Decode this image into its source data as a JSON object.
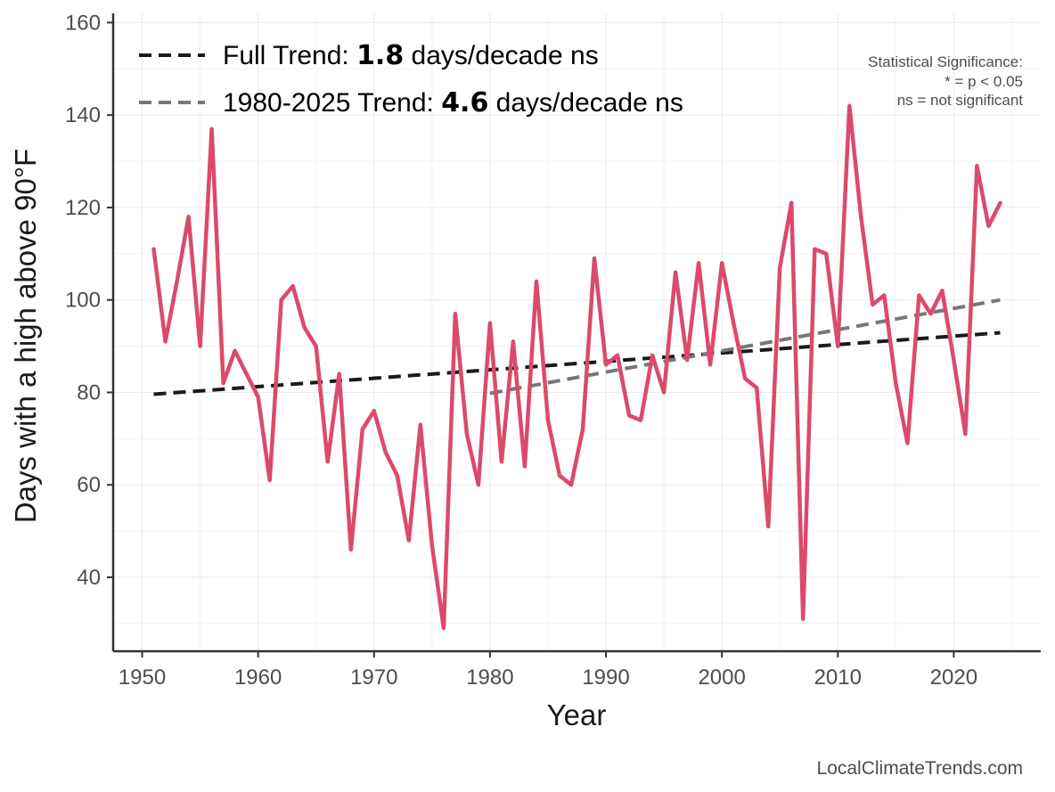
{
  "chart_data": {
    "type": "line",
    "xlabel": "Year",
    "ylabel": "Days with a high above 90°F",
    "xlim": [
      1947.5,
      2027.5
    ],
    "ylim": [
      24,
      162
    ],
    "xticks": [
      1950,
      1960,
      1970,
      1980,
      1990,
      2000,
      2010,
      2020
    ],
    "yticks": [
      40,
      60,
      80,
      100,
      120,
      140,
      160
    ],
    "grid": true,
    "series": [
      {
        "name": "Annual days above 90°F",
        "color": "#dc4a6b",
        "x": [
          1951,
          1952,
          1953,
          1954,
          1955,
          1956,
          1957,
          1958,
          1959,
          1960,
          1961,
          1962,
          1963,
          1964,
          1965,
          1966,
          1967,
          1968,
          1969,
          1970,
          1971,
          1972,
          1973,
          1974,
          1975,
          1976,
          1977,
          1978,
          1979,
          1980,
          1981,
          1982,
          1983,
          1984,
          1985,
          1986,
          1987,
          1988,
          1989,
          1990,
          1991,
          1992,
          1993,
          1994,
          1995,
          1996,
          1997,
          1998,
          1999,
          2000,
          2001,
          2002,
          2003,
          2004,
          2005,
          2006,
          2007,
          2008,
          2009,
          2010,
          2011,
          2012,
          2013,
          2014,
          2015,
          2016,
          2017,
          2018,
          2019,
          2020,
          2021,
          2022,
          2023,
          2024
        ],
        "values": [
          111,
          91,
          104,
          118,
          90,
          137,
          82,
          89,
          84,
          79,
          61,
          100,
          103,
          94,
          90,
          65,
          84,
          46,
          72,
          76,
          67,
          62,
          48,
          73,
          47,
          29,
          97,
          71,
          60,
          95,
          65,
          91,
          64,
          104,
          74,
          62,
          60,
          72,
          109,
          86,
          88,
          75,
          74,
          88,
          80,
          106,
          87,
          108,
          86,
          108,
          95,
          83,
          81,
          51,
          107,
          121,
          31,
          111,
          110,
          90,
          142,
          118,
          99,
          101,
          82,
          69,
          101,
          97,
          102,
          87,
          71,
          129,
          116,
          121
        ]
      }
    ],
    "trends": [
      {
        "name": "Full Trend",
        "color": "#1a1a1a",
        "style": "dashed",
        "x": [
          1951,
          2024
        ],
        "values": [
          79.6,
          92.9
        ]
      },
      {
        "name": "1980-2025 Trend",
        "color": "#777777",
        "style": "dashed",
        "x": [
          1980,
          2024
        ],
        "values": [
          79.8,
          100.0
        ]
      }
    ],
    "legend": {
      "position": "top-left",
      "entries": [
        {
          "prefix": "Full Trend: ",
          "value": "1.8",
          "suffix": " days/decade ns"
        },
        {
          "prefix": "1980-2025 Trend: ",
          "value": "4.6",
          "suffix": " days/decade ns"
        }
      ]
    },
    "significance_note": {
      "position": "top-right",
      "lines": [
        "Statistical Significance:",
        "* = p < 0.05",
        "ns = not significant"
      ]
    }
  },
  "credit": "LocalClimateTrends.com",
  "colors": {
    "series": "#dc4a6b",
    "full_trend": "#1a1a1a",
    "recent_trend": "#777777",
    "grid": "#ebebeb",
    "axis": "#333333"
  }
}
